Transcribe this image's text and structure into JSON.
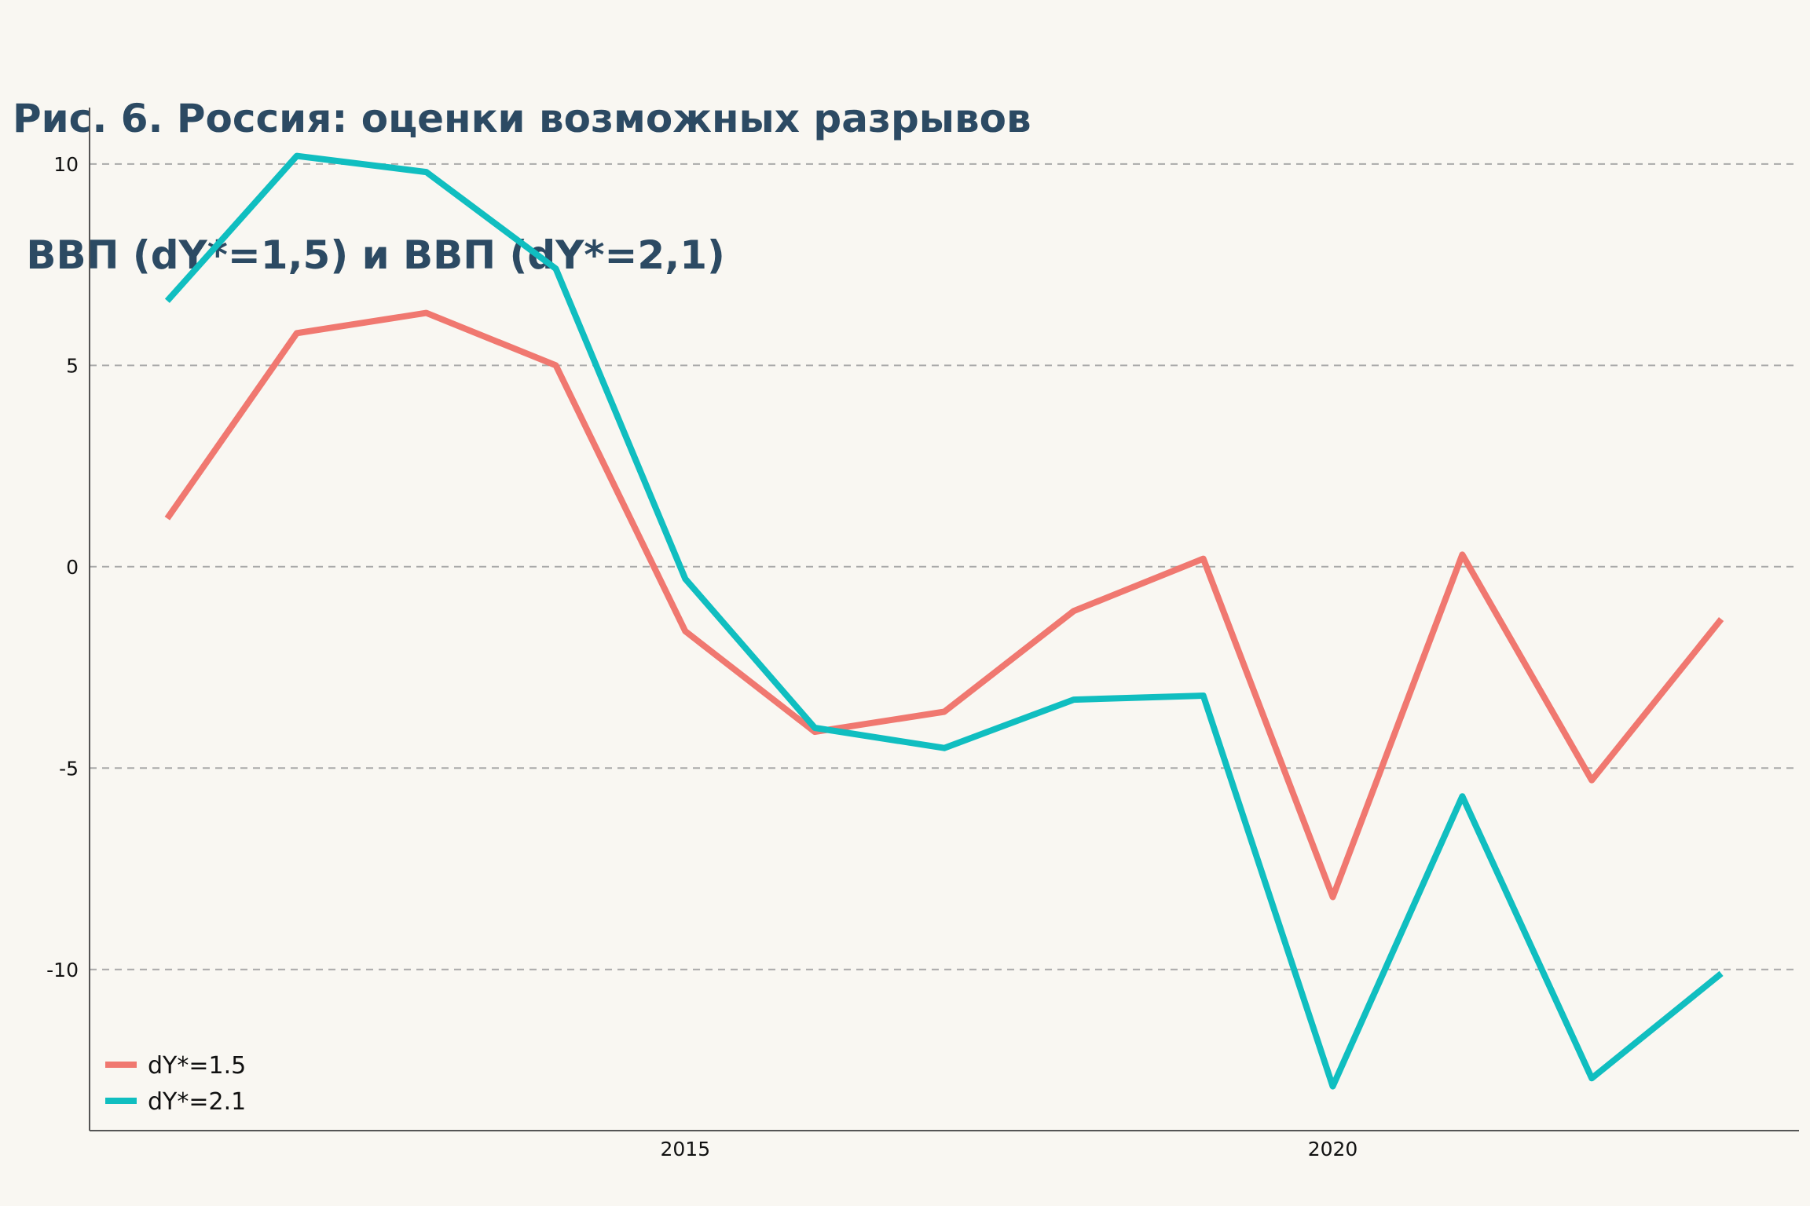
{
  "title": {
    "line1": "Рис. 6. Россия: оценки возможных разрывов",
    "line2": " ВВП (dY*=1,5) и ВВП (dY*=2,1)"
  },
  "colors": {
    "background": "#f9f7f2",
    "title": "#2c4a63",
    "axis": "#555555",
    "grid": "#aaaaaa"
  },
  "chart_data": {
    "type": "line",
    "title": "Рис. 6. Россия: оценки возможных разрывов ВВП (dY*=1,5) и ВВП (dY*=2,1)",
    "xlabel": "",
    "ylabel": "",
    "x": [
      2011,
      2012,
      2013,
      2014,
      2015,
      2016,
      2017,
      2018,
      2019,
      2020,
      2021,
      2022,
      2023
    ],
    "xlim": [
      2010.4,
      2023.6
    ],
    "ylim": [
      -14,
      11.4
    ],
    "x_ticks": [
      {
        "value": 2015,
        "label": "2015"
      },
      {
        "value": 2020,
        "label": "2020"
      }
    ],
    "y_ticks": [
      {
        "value": 10,
        "label": "10"
      },
      {
        "value": 5,
        "label": "5"
      },
      {
        "value": 0,
        "label": "0"
      },
      {
        "value": -5,
        "label": "-5"
      },
      {
        "value": -10,
        "label": "-10"
      }
    ],
    "grid": "horizontal dashed",
    "legend_position": "bottom-left",
    "series": [
      {
        "name": "dY*=1.5",
        "color": "#f07870",
        "values": [
          1.2,
          5.8,
          6.3,
          5.0,
          -1.6,
          -4.1,
          -3.6,
          -1.1,
          0.2,
          -8.2,
          0.3,
          -5.3,
          -1.3
        ]
      },
      {
        "name": "dY*=2.1",
        "color": "#10bec0",
        "values": [
          6.6,
          10.2,
          9.8,
          7.4,
          -0.3,
          -4.0,
          -4.5,
          -3.3,
          -3.2,
          -12.9,
          -5.7,
          -12.7,
          -10.1
        ]
      }
    ]
  }
}
